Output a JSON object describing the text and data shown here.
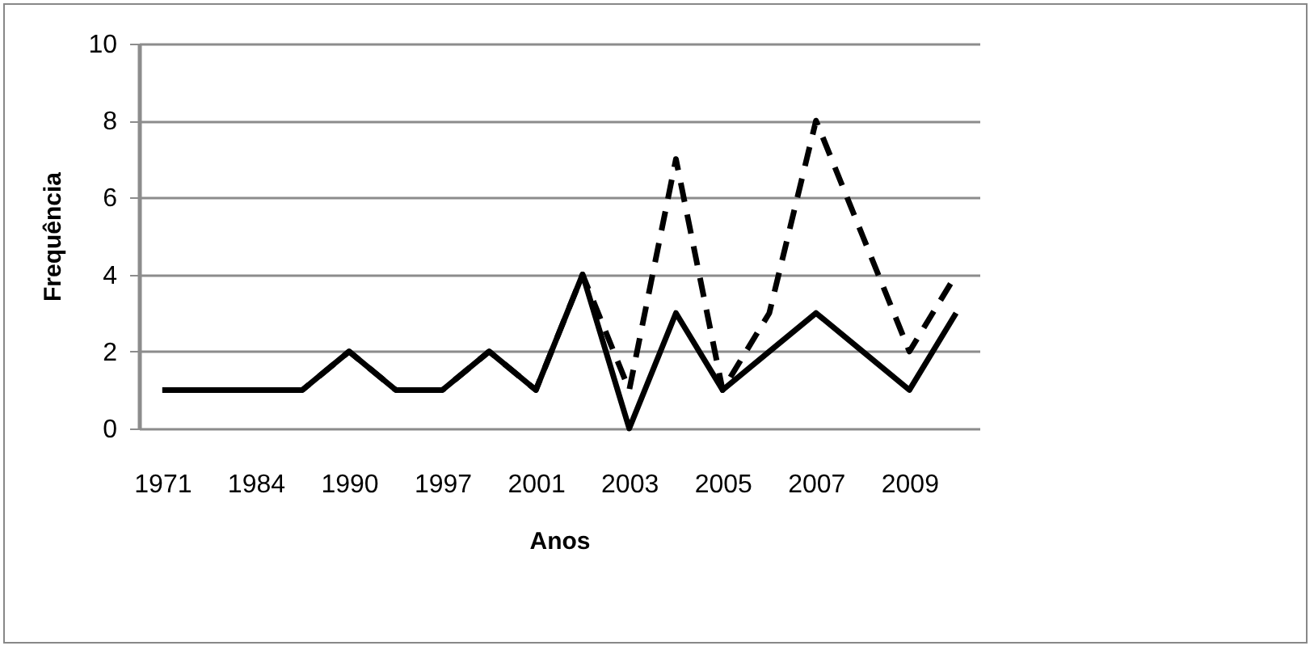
{
  "chart_data": {
    "type": "line",
    "xlabel": "Anos",
    "ylabel": "Frequência",
    "categories": [
      "1971",
      null,
      "1984",
      null,
      "1990",
      null,
      "1997",
      null,
      "2001",
      null,
      "2003",
      null,
      "2005",
      null,
      "2007",
      null,
      "2009",
      null
    ],
    "series": [
      {
        "color": "#000000",
        "line_style": "dashed",
        "values": [
          1,
          1,
          1,
          1,
          2,
          1,
          1,
          2,
          1,
          4,
          1,
          7,
          1,
          3,
          8,
          5,
          2,
          4
        ]
      },
      {
        "color": "#000000",
        "line_style": "solid",
        "values": [
          1,
          1,
          1,
          1,
          2,
          1,
          1,
          2,
          1,
          4,
          0,
          3,
          1,
          2,
          3,
          2,
          1,
          3
        ]
      }
    ],
    "ylim": [
      0,
      10
    ],
    "yticks": [
      0,
      2,
      4,
      6,
      8,
      10
    ],
    "grid": "y",
    "marker": "none"
  }
}
